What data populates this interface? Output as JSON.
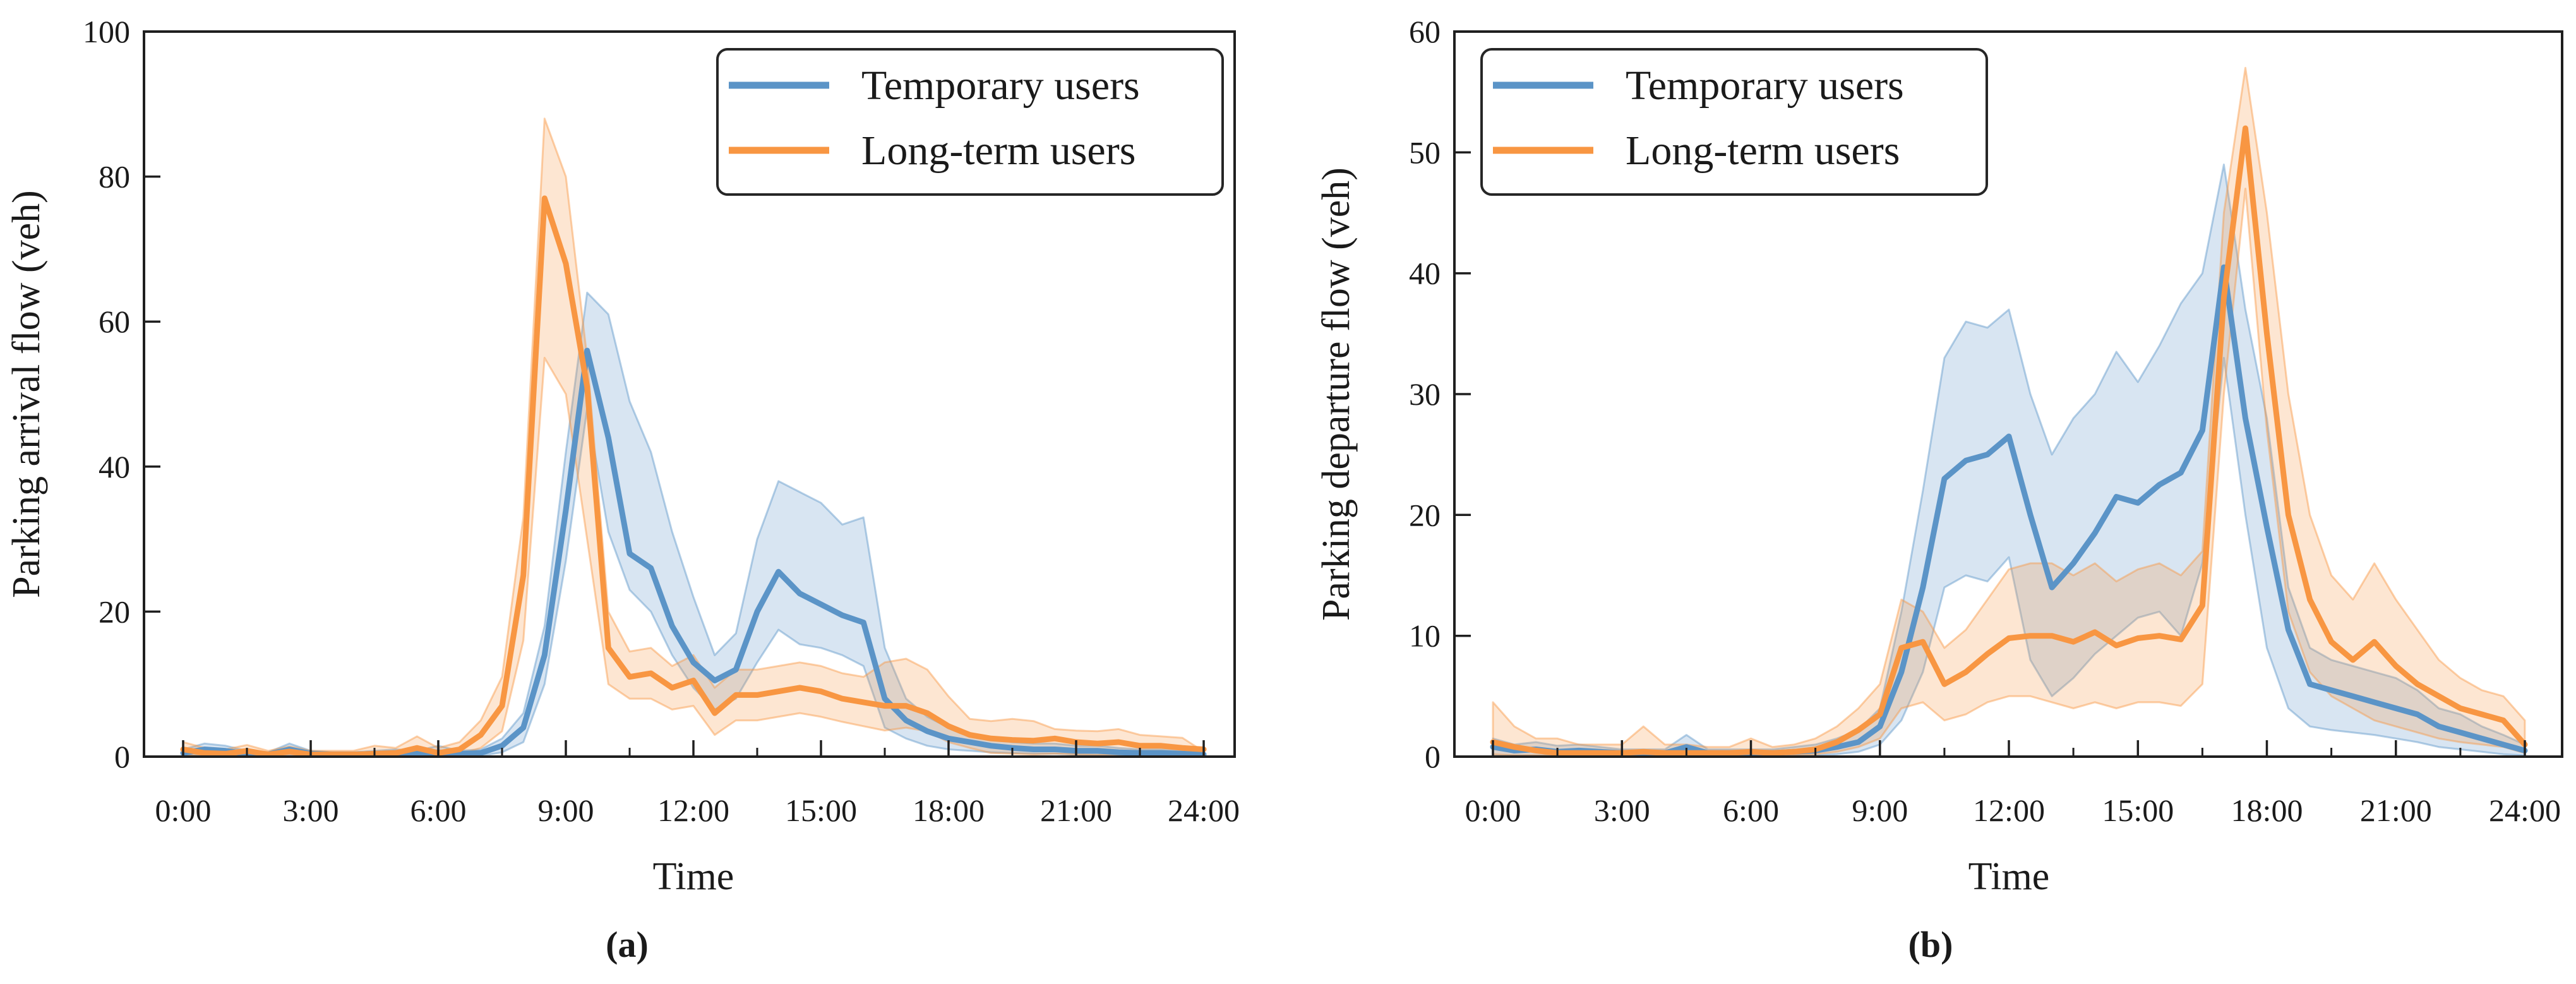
{
  "figure": {
    "captions": {
      "a": "(a)",
      "b": "(b)"
    },
    "colors": {
      "temporary": "#5B94C7",
      "long_term": "#F89642",
      "axis": "#1f1f1f",
      "background": "#ffffff"
    }
  },
  "legend": {
    "entries": [
      {
        "label": "Temporary users",
        "color_key": "temporary"
      },
      {
        "label": "Long-term users",
        "color_key": "long_term"
      }
    ]
  },
  "chart_data": [
    {
      "id": "a",
      "type": "line",
      "caption": "(a)",
      "xlabel": "Time",
      "ylabel": "Parking arrival flow (veh)",
      "ylim": [
        0,
        100
      ],
      "yticks": [
        0,
        20,
        40,
        60,
        80,
        100
      ],
      "xlim_hours": [
        0,
        24
      ],
      "xtick_hours": [
        0,
        3,
        6,
        9,
        12,
        15,
        18,
        21,
        24
      ],
      "xtick_labels": [
        "0:00",
        "3:00",
        "6:00",
        "9:00",
        "12:00",
        "15:00",
        "18:00",
        "21:00",
        "24:00"
      ],
      "minor_xtick_hours": [
        1.5,
        4.5,
        7.5,
        10.5,
        13.5,
        16.5,
        19.5,
        22.5
      ],
      "legend_position": "top-right",
      "grid": false,
      "x_hours": [
        0,
        0.5,
        1,
        1.5,
        2,
        2.5,
        3,
        3.5,
        4,
        4.5,
        5,
        5.5,
        6,
        6.5,
        7,
        7.5,
        8,
        8.5,
        9,
        9.5,
        10,
        10.5,
        11,
        11.5,
        12,
        12.5,
        13,
        13.5,
        14,
        14.5,
        15,
        15.5,
        16,
        16.5,
        17,
        17.5,
        18,
        18.5,
        19,
        19.5,
        20,
        20.5,
        21,
        21.5,
        22,
        22.5,
        23,
        23.5,
        24
      ],
      "series": [
        {
          "name": "Temporary users",
          "color_key": "temporary",
          "mean": [
            0.5,
            1,
            0.8,
            0.4,
            0.3,
            1,
            0.4,
            0.3,
            0.3,
            0.4,
            0.5,
            0.4,
            0.6,
            0.4,
            0.5,
            1.5,
            4,
            14,
            34,
            56,
            44,
            28,
            26,
            18,
            13,
            10.5,
            12,
            20,
            25.5,
            22.5,
            21,
            19.5,
            18.5,
            8,
            5,
            3.5,
            2.5,
            2,
            1.5,
            1.2,
            1,
            1,
            0.8,
            0.8,
            0.6,
            0.5,
            0.5,
            0.4,
            0.3
          ],
          "upper": [
            1,
            1.8,
            1.5,
            0.8,
            0.6,
            1.8,
            0.8,
            0.6,
            0.6,
            0.8,
            1,
            0.8,
            1.5,
            0.8,
            1,
            2.5,
            6,
            18,
            42,
            64,
            61,
            49,
            42,
            31,
            22,
            14,
            17,
            30,
            38,
            36.5,
            35,
            32,
            33,
            15,
            8,
            5.5,
            4,
            3,
            2.5,
            2,
            1.8,
            1.8,
            1.5,
            1.5,
            1.2,
            1,
            1,
            0.8,
            0.6
          ],
          "lower": [
            0.1,
            0.3,
            0.2,
            0.1,
            0.1,
            0.3,
            0.1,
            0.1,
            0.1,
            0.1,
            0.1,
            0.1,
            0.2,
            0.1,
            0.1,
            0.6,
            2,
            10,
            27,
            48,
            31,
            23,
            20,
            14,
            9.5,
            6.5,
            8,
            13,
            17.5,
            15.5,
            15,
            14,
            12.5,
            4,
            2.5,
            1.5,
            1,
            0.8,
            0.6,
            0.5,
            0.4,
            0.4,
            0.3,
            0.3,
            0.2,
            0.2,
            0.2,
            0.1,
            0.1
          ]
        },
        {
          "name": "Long-term users",
          "color_key": "long_term",
          "mean": [
            1,
            0.5,
            0.4,
            0.8,
            0.3,
            0.7,
            0.3,
            0.3,
            0.3,
            0.4,
            0.5,
            1.2,
            0.5,
            1,
            3,
            7,
            25,
            77,
            68,
            51,
            15,
            11,
            11.5,
            9.5,
            10.5,
            6,
            8.5,
            8.5,
            9,
            9.5,
            9,
            8,
            7.5,
            7,
            7,
            6,
            4.2,
            3,
            2.5,
            2.3,
            2.2,
            2.5,
            2,
            1.8,
            2,
            1.5,
            1.5,
            1.2,
            1
          ],
          "upper": [
            2,
            1.2,
            1,
            1.6,
            0.8,
            1.4,
            0.8,
            0.8,
            0.8,
            1.5,
            1.2,
            2.8,
            1.2,
            2,
            5,
            11,
            33,
            88,
            80,
            55,
            20,
            14.5,
            15,
            12.5,
            14,
            9.5,
            12,
            12,
            12.5,
            13,
            12.5,
            11.5,
            11,
            13,
            13.5,
            12,
            8.3,
            5.2,
            4.9,
            5.2,
            4.9,
            3.8,
            3.6,
            3.5,
            3.8,
            3,
            2.8,
            2.6,
            0.7
          ],
          "lower": [
            0.2,
            0.1,
            0.1,
            0.2,
            0.1,
            0.1,
            0.1,
            0.1,
            0.1,
            0.1,
            0.1,
            0.3,
            0.1,
            0.3,
            1.2,
            3.5,
            16,
            55,
            50,
            30,
            10,
            8,
            8,
            6.5,
            7,
            3,
            5,
            5,
            5.5,
            6,
            5.5,
            4.8,
            4.2,
            3.6,
            4,
            3.5,
            2,
            1.2,
            0.5,
            0.4,
            0.3,
            0.4,
            0.3,
            0.2,
            0.3,
            0.2,
            0.2,
            0.1,
            0.1
          ]
        }
      ]
    },
    {
      "id": "b",
      "type": "line",
      "caption": "(b)",
      "xlabel": "Time",
      "ylabel": "Parking departure flow (veh)",
      "ylim": [
        0,
        60
      ],
      "yticks": [
        0,
        10,
        20,
        30,
        40,
        50,
        60
      ],
      "xlim_hours": [
        0,
        24
      ],
      "xtick_hours": [
        0,
        3,
        6,
        9,
        12,
        15,
        18,
        21,
        24
      ],
      "xtick_labels": [
        "0:00",
        "3:00",
        "6:00",
        "9:00",
        "12:00",
        "15:00",
        "18:00",
        "21:00",
        "24:00"
      ],
      "minor_xtick_hours": [
        1.5,
        4.5,
        7.5,
        10.5,
        13.5,
        16.5,
        19.5,
        22.5
      ],
      "legend_position": "top-left",
      "grid": false,
      "x_hours": [
        0,
        0.5,
        1,
        1.5,
        2,
        2.5,
        3,
        3.5,
        4,
        4.5,
        5,
        5.5,
        6,
        6.5,
        7,
        7.5,
        8,
        8.5,
        9,
        9.5,
        10,
        10.5,
        11,
        11.5,
        12,
        12.5,
        13,
        13.5,
        14,
        14.5,
        15,
        15.5,
        16,
        16.5,
        17,
        17.5,
        18,
        18.5,
        19,
        19.5,
        20,
        20.5,
        21,
        21.5,
        22,
        22.5,
        23,
        23.5,
        24
      ],
      "series": [
        {
          "name": "Temporary users",
          "color_key": "temporary",
          "mean": [
            0.8,
            0.5,
            0.6,
            0.4,
            0.5,
            0.4,
            0.3,
            0.3,
            0.3,
            0.8,
            0.3,
            0.3,
            0.3,
            0.3,
            0.4,
            0.5,
            0.8,
            1.2,
            2.5,
            7,
            14,
            23,
            24.5,
            25,
            26.5,
            20,
            14,
            16,
            18.5,
            21.5,
            21,
            22.5,
            23.5,
            27,
            40.5,
            28,
            19,
            10.5,
            6,
            5.5,
            5,
            4.5,
            4,
            3.5,
            2.5,
            2,
            1.5,
            1,
            0.5
          ],
          "upper": [
            1.5,
            1,
            1.2,
            0.9,
            1,
            0.8,
            0.6,
            0.6,
            0.6,
            1.8,
            0.6,
            0.6,
            0.6,
            0.6,
            0.8,
            1,
            1.5,
            2.2,
            4,
            12,
            22,
            33,
            36,
            35.5,
            37,
            30,
            25,
            28,
            30,
            33.5,
            31,
            34,
            37.5,
            40,
            49,
            37,
            28,
            14,
            9,
            8,
            7.5,
            7,
            6.5,
            5.5,
            4,
            3.5,
            2.5,
            1.8,
            1
          ],
          "lower": [
            0.1,
            0.1,
            0.1,
            0.1,
            0.1,
            0.1,
            0.1,
            0.1,
            0.1,
            0.1,
            0.1,
            0.1,
            0.1,
            0.1,
            0.1,
            0.1,
            0.2,
            0.4,
            1,
            3,
            7,
            14,
            15,
            14.5,
            16.5,
            8,
            5,
            6.5,
            8.5,
            10,
            11.5,
            12,
            10,
            16,
            33,
            20,
            9,
            4,
            2.5,
            2.2,
            2,
            1.8,
            1.5,
            1.2,
            0.8,
            0.6,
            0.4,
            0.2,
            0.1
          ]
        },
        {
          "name": "Long-term users",
          "color_key": "long_term",
          "mean": [
            1.2,
            0.8,
            0.5,
            0.3,
            0.3,
            0.3,
            0.3,
            0.4,
            0.3,
            0.3,
            0.3,
            0.3,
            0.4,
            0.3,
            0.4,
            0.6,
            1.2,
            2.2,
            3.5,
            9,
            9.5,
            6,
            7,
            8.5,
            9.8,
            10,
            10,
            9.5,
            10.3,
            9.2,
            9.8,
            10,
            9.7,
            12.5,
            38,
            52,
            35,
            20,
            13,
            9.5,
            8,
            9.5,
            7.5,
            6,
            5,
            4,
            3.5,
            3,
            1
          ],
          "upper": [
            4.5,
            2.5,
            1.5,
            1.5,
            1,
            1,
            1,
            2.5,
            1,
            1,
            0.8,
            0.8,
            1.5,
            0.8,
            1,
            1.5,
            2.5,
            4,
            6,
            13,
            12,
            9,
            10.5,
            13,
            15.5,
            16,
            16,
            15,
            16,
            14.5,
            15.5,
            16,
            15,
            17,
            45,
            57,
            45,
            30,
            20,
            15,
            13,
            16,
            13,
            10.5,
            8,
            6.5,
            5.5,
            5,
            3
          ],
          "lower": [
            0.2,
            0.1,
            0.1,
            0.1,
            0.1,
            0.1,
            0.1,
            0.1,
            0.1,
            0.1,
            0.1,
            0.1,
            0.1,
            0.1,
            0.1,
            0.2,
            0.4,
            0.8,
            1.5,
            4,
            4.5,
            3,
            3.5,
            4.5,
            5,
            5,
            4.5,
            4,
            4.5,
            4,
            4.5,
            4.5,
            4.2,
            6,
            30,
            47,
            27,
            12,
            7,
            5,
            4,
            3,
            2.5,
            2,
            1.5,
            1.2,
            1,
            0.8,
            0.3
          ]
        }
      ]
    }
  ]
}
